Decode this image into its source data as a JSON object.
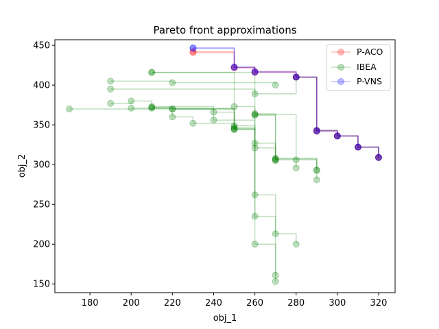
{
  "chart_data": {
    "type": "scatter",
    "title": "Pareto front approximations",
    "xlabel": "obj_1",
    "ylabel": "obj_2",
    "xlim": [
      163,
      328
    ],
    "ylim": [
      139,
      457
    ],
    "xticks": [
      180,
      200,
      220,
      240,
      260,
      280,
      300,
      320
    ],
    "yticks": [
      150,
      200,
      250,
      300,
      350,
      400,
      450
    ],
    "grid": false,
    "legend_position": "top-right",
    "series": [
      {
        "name": "P-ACO",
        "color": "#ff0000",
        "fronts": [
          [
            [
              230,
              442
            ],
            [
              250,
              422
            ],
            [
              260,
              416
            ],
            [
              280,
              410
            ],
            [
              290,
              343
            ],
            [
              300,
              336
            ],
            [
              310,
              322
            ],
            [
              320,
              309
            ]
          ],
          [
            [
              230,
              441
            ],
            [
              250,
              422
            ],
            [
              260,
              417
            ],
            [
              280,
              410
            ],
            [
              290,
              342
            ],
            [
              300,
              336
            ],
            [
              310,
              322
            ],
            [
              320,
              309
            ]
          ]
        ]
      },
      {
        "name": "IBEA",
        "color": "#008000",
        "fronts": [
          [
            [
              210,
              416
            ],
            [
              250,
              373
            ],
            [
              260,
              364
            ],
            [
              270,
              308
            ],
            [
              290,
              293
            ]
          ],
          [
            [
              210,
              416
            ],
            [
              260,
              389
            ],
            [
              280,
              410
            ],
            [
              290,
              343
            ],
            [
              300,
              336
            ],
            [
              310,
              322
            ],
            [
              320,
              309
            ]
          ],
          [
            [
              190,
              405
            ],
            [
              220,
              403
            ],
            [
              270,
              400
            ]
          ],
          [
            [
              190,
              395
            ],
            [
              260,
              362
            ],
            [
              270,
              306
            ],
            [
              280,
              296
            ]
          ],
          [
            [
              190,
              377
            ],
            [
              200,
              380
            ],
            [
              210,
              373
            ],
            [
              240,
              356
            ],
            [
              260,
              327
            ],
            [
              270,
              305
            ]
          ],
          [
            [
              170,
              370
            ],
            [
              240,
              366
            ],
            [
              250,
              345
            ],
            [
              260,
              321
            ],
            [
              270,
              307
            ],
            [
              290,
              293
            ]
          ],
          [
            [
              200,
              371
            ],
            [
              220,
              360
            ],
            [
              230,
              352
            ],
            [
              250,
              345
            ],
            [
              260,
              262
            ],
            [
              270,
              213
            ],
            [
              280,
              200
            ]
          ],
          [
            [
              210,
              372
            ],
            [
              220,
              370
            ],
            [
              250,
              347
            ],
            [
              260,
              235
            ],
            [
              270,
              161
            ]
          ],
          [
            [
              220,
              370
            ],
            [
              250,
              349
            ],
            [
              260,
              200
            ],
            [
              270,
              153
            ]
          ],
          [
            [
              210,
              371
            ],
            [
              250,
              344
            ],
            [
              260,
              363
            ],
            [
              280,
              306
            ],
            [
              290,
              281
            ]
          ]
        ]
      },
      {
        "name": "P-VNS",
        "color": "#0000ff",
        "fronts": [
          [
            [
              230,
              447
            ],
            [
              250,
              422
            ],
            [
              260,
              416
            ],
            [
              280,
              410
            ],
            [
              290,
              342
            ],
            [
              300,
              336
            ],
            [
              310,
              322
            ],
            [
              320,
              309
            ]
          ],
          [
            [
              230,
              446
            ],
            [
              250,
              423
            ],
            [
              260,
              417
            ],
            [
              280,
              410
            ],
            [
              290,
              343
            ],
            [
              300,
              336
            ],
            [
              310,
              322
            ],
            [
              320,
              309
            ]
          ]
        ]
      }
    ]
  }
}
